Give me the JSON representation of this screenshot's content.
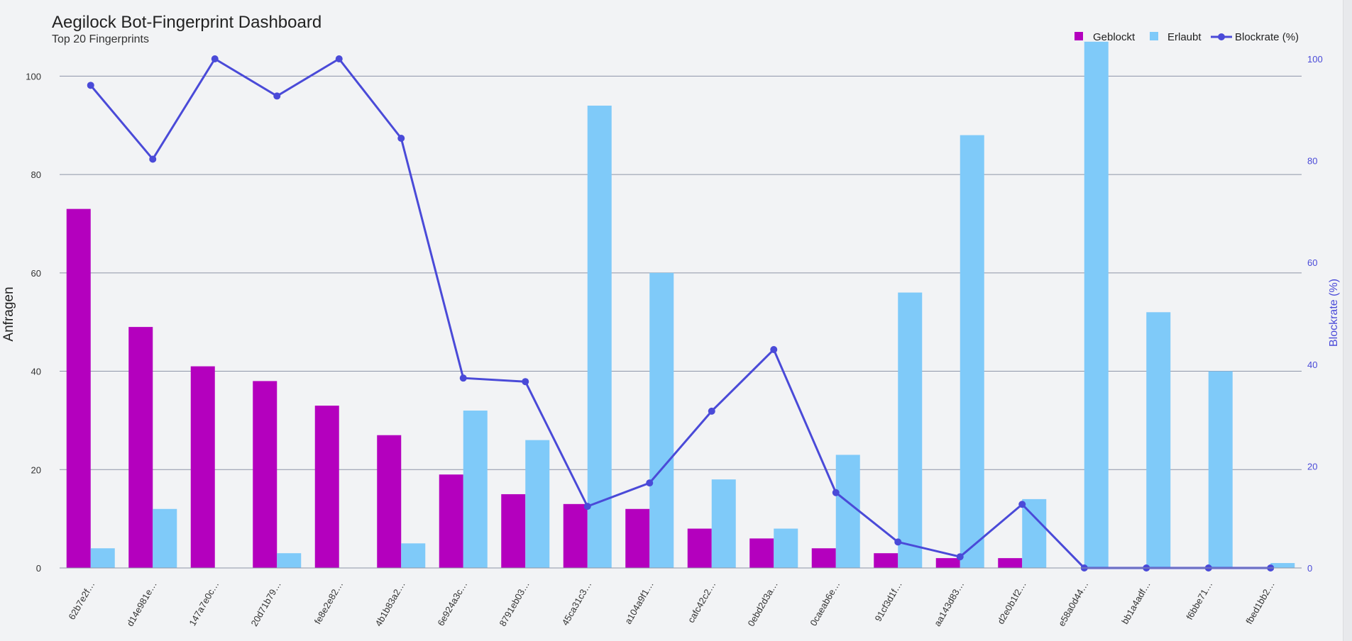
{
  "header": {
    "title": "Aegilock Bot-Fingerprint Dashboard",
    "subtitle": "Top 20 Fingerprints"
  },
  "colors": {
    "blocked": "#b400be",
    "allowed": "#7fcaf9",
    "rate": "#4a4ad8",
    "grid": "#8e95a8"
  },
  "chart_data": {
    "type": "bar",
    "categories": [
      "62b7e2f…",
      "d14e981e…",
      "147a7e0c…",
      "20d71b79…",
      "fe8e2e82…",
      "4b1b83a2…",
      "6e924a3c…",
      "8791eb03…",
      "45ca31c3…",
      "a104a9f1…",
      "cafc42c2…",
      "0ebd2d3a…",
      "0caeab6e…",
      "91cf3d1f…",
      "aa143d83…",
      "d2e0b1f2…",
      "e58a0d44…",
      "bb1a4adf…",
      "f6bbe71…",
      "fbed1bb2…"
    ],
    "series": [
      {
        "name": "Geblockt",
        "type": "bar",
        "axis": "left",
        "values": [
          73,
          49,
          41,
          38,
          33,
          27,
          19,
          15,
          13,
          12,
          8,
          6,
          4,
          3,
          2,
          2,
          0,
          0,
          0,
          0
        ]
      },
      {
        "name": "Erlaubt",
        "type": "bar",
        "axis": "left",
        "values": [
          4,
          12,
          0,
          3,
          0,
          5,
          32,
          26,
          94,
          60,
          18,
          8,
          23,
          56,
          88,
          14,
          107,
          52,
          40,
          1
        ]
      },
      {
        "name": "Blockrate (%)",
        "type": "line",
        "axis": "right",
        "values": [
          94.8,
          80.3,
          100,
          92.7,
          100,
          84.4,
          37.3,
          36.6,
          12.1,
          16.7,
          30.8,
          42.9,
          14.8,
          5.1,
          2.2,
          12.5,
          0,
          0,
          0,
          0
        ]
      }
    ],
    "ylabel": "Anfragen",
    "y2label": "Blockrate (%)",
    "ylim": [
      0,
      110
    ],
    "y2lim": [
      0,
      100
    ],
    "yticks": [
      0,
      20,
      40,
      60,
      80,
      100
    ],
    "y2ticks": [
      0,
      20,
      40,
      60,
      80,
      100
    ],
    "legend_position": "top-right",
    "grid": true
  }
}
